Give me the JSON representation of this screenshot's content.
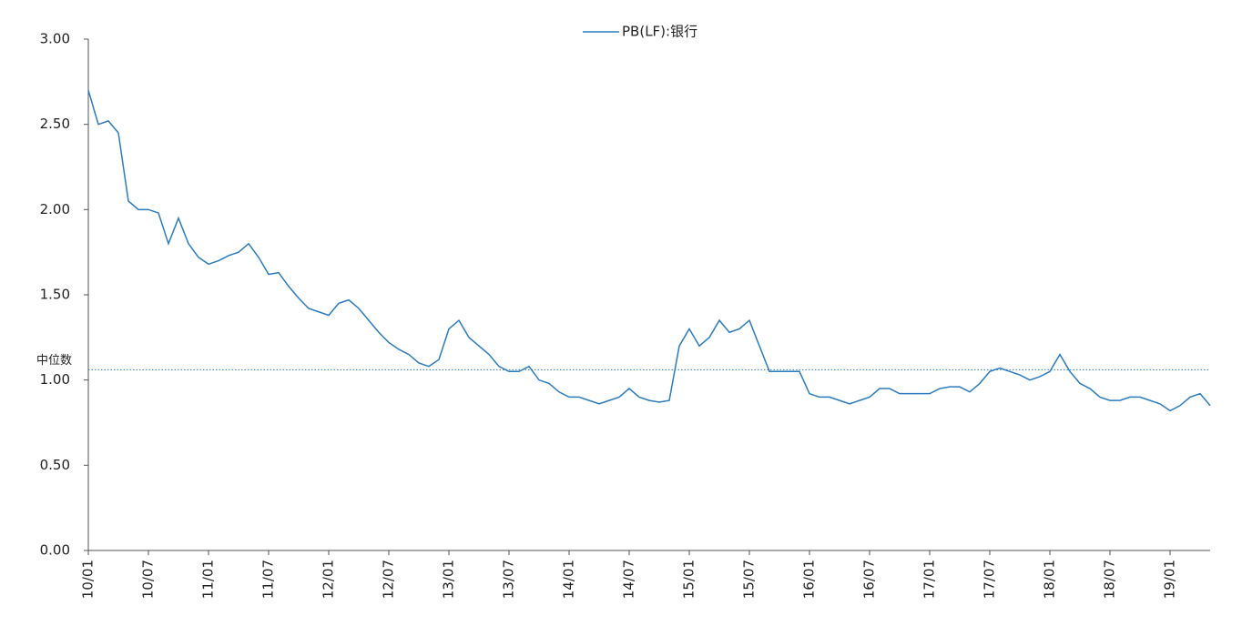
{
  "chart_data": {
    "type": "line",
    "x": [
      "10/01",
      "10/02",
      "10/03",
      "10/04",
      "10/05",
      "10/06",
      "10/07",
      "10/08",
      "10/09",
      "10/10",
      "10/11",
      "10/12",
      "11/01",
      "11/02",
      "11/03",
      "11/04",
      "11/05",
      "11/06",
      "11/07",
      "11/08",
      "11/09",
      "11/10",
      "11/11",
      "11/12",
      "12/01",
      "12/02",
      "12/03",
      "12/04",
      "12/05",
      "12/06",
      "12/07",
      "12/08",
      "12/09",
      "12/10",
      "12/11",
      "12/12",
      "13/01",
      "13/02",
      "13/03",
      "13/04",
      "13/05",
      "13/06",
      "13/07",
      "13/08",
      "13/09",
      "13/10",
      "13/11",
      "13/12",
      "14/01",
      "14/02",
      "14/03",
      "14/04",
      "14/05",
      "14/06",
      "14/07",
      "14/08",
      "14/09",
      "14/10",
      "14/11",
      "14/12",
      "15/01",
      "15/02",
      "15/03",
      "15/04",
      "15/05",
      "15/06",
      "15/07",
      "15/08",
      "15/09",
      "15/10",
      "15/11",
      "15/12",
      "16/01",
      "16/02",
      "16/03",
      "16/04",
      "16/05",
      "16/06",
      "16/07",
      "16/08",
      "16/09",
      "16/10",
      "16/11",
      "16/12",
      "17/01",
      "17/02",
      "17/03",
      "17/04",
      "17/05",
      "17/06",
      "17/07",
      "17/08",
      "17/09",
      "17/10",
      "17/11",
      "17/12",
      "18/01",
      "18/02",
      "18/03",
      "18/04",
      "18/05",
      "18/06",
      "18/07",
      "18/08",
      "18/09",
      "18/10",
      "18/11",
      "18/12",
      "19/01",
      "19/02",
      "19/03",
      "19/04",
      "19/05"
    ],
    "series": [
      {
        "name": "PB(LF):银行",
        "color": "#2b7bbf",
        "values": [
          2.7,
          2.5,
          2.52,
          2.45,
          2.05,
          2.0,
          2.0,
          1.98,
          1.8,
          1.95,
          1.8,
          1.72,
          1.68,
          1.7,
          1.73,
          1.75,
          1.8,
          1.72,
          1.62,
          1.63,
          1.55,
          1.48,
          1.42,
          1.4,
          1.38,
          1.45,
          1.47,
          1.42,
          1.35,
          1.28,
          1.22,
          1.18,
          1.15,
          1.1,
          1.08,
          1.12,
          1.3,
          1.35,
          1.25,
          1.2,
          1.15,
          1.08,
          1.05,
          1.05,
          1.08,
          1.0,
          0.98,
          0.93,
          0.9,
          0.9,
          0.88,
          0.86,
          0.88,
          0.9,
          0.95,
          0.9,
          0.88,
          0.87,
          0.88,
          1.2,
          1.3,
          1.2,
          1.25,
          1.35,
          1.28,
          1.3,
          1.35,
          1.2,
          1.05,
          1.05,
          1.05,
          1.05,
          0.92,
          0.9,
          0.9,
          0.88,
          0.86,
          0.88,
          0.9,
          0.95,
          0.95,
          0.92,
          0.92,
          0.92,
          0.92,
          0.95,
          0.96,
          0.96,
          0.93,
          0.98,
          1.05,
          1.07,
          1.05,
          1.03,
          1.0,
          1.02,
          1.05,
          1.15,
          1.05,
          0.98,
          0.95,
          0.9,
          0.88,
          0.88,
          0.9,
          0.9,
          0.88,
          0.86,
          0.82,
          0.85,
          0.9,
          0.92,
          0.85
        ]
      }
    ],
    "xticks": [
      "10/01",
      "10/07",
      "11/01",
      "11/07",
      "12/01",
      "12/07",
      "13/01",
      "13/07",
      "14/01",
      "14/07",
      "15/01",
      "15/07",
      "16/01",
      "16/07",
      "17/01",
      "17/07",
      "18/01",
      "18/07",
      "19/01"
    ],
    "ylim": [
      0,
      3
    ],
    "yticks": [
      {
        "value": 0,
        "label": "0.00"
      },
      {
        "value": 0.5,
        "label": "0.50"
      },
      {
        "value": 1,
        "label": "1.00"
      },
      {
        "value": 1.5,
        "label": "1.50"
      },
      {
        "value": 2,
        "label": "2.00"
      },
      {
        "value": 2.5,
        "label": "2.50"
      },
      {
        "value": 3,
        "label": "3.00"
      }
    ],
    "median": {
      "label": "中位数",
      "value": 1.06,
      "color": "#2b7bbf"
    },
    "legend": "top"
  }
}
